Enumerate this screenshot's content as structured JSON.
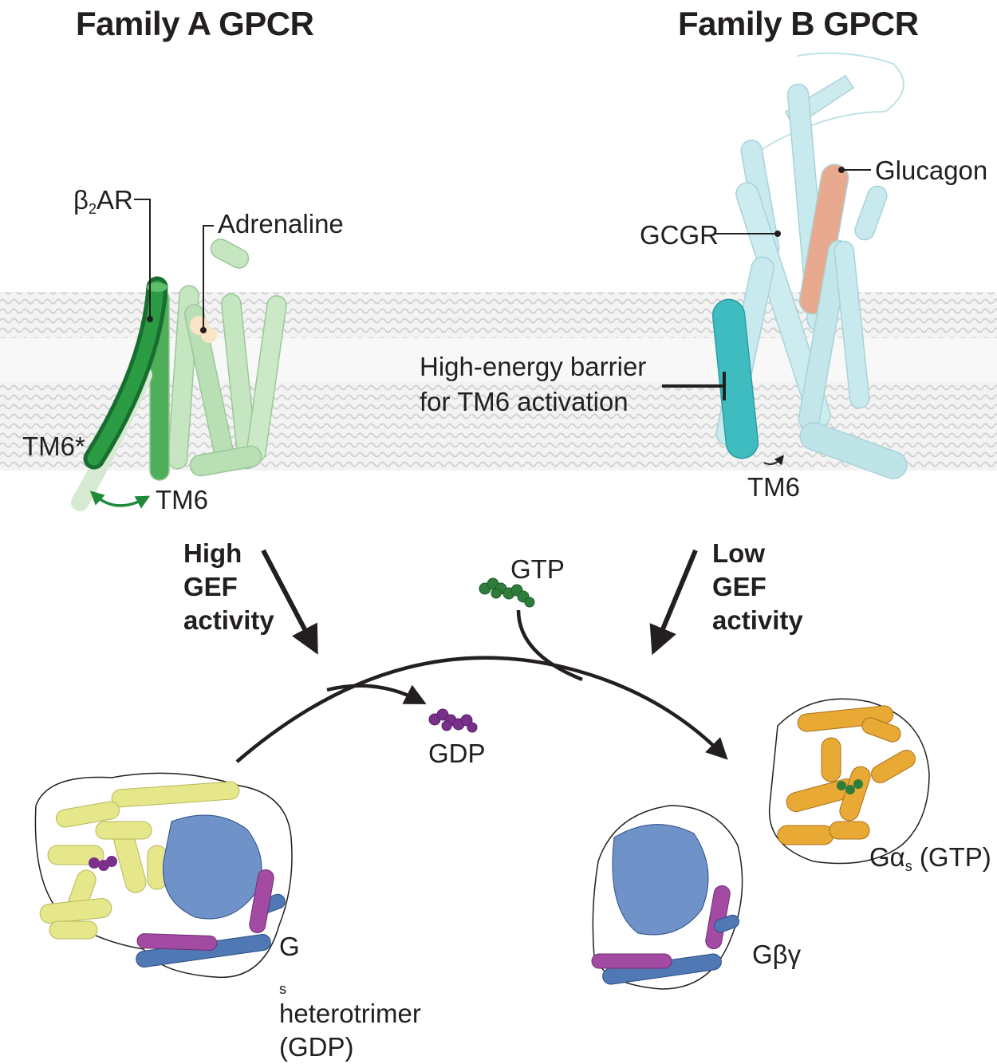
{
  "titles": {
    "family_a": "Family A GPCR",
    "family_b": "Family B GPCR"
  },
  "family_a": {
    "receptor_prefix": "β",
    "receptor_sub": "2",
    "receptor_suffix": "AR",
    "ligand": "Adrenaline",
    "tm6_active": "TM6*",
    "tm6": "TM6",
    "gef": [
      "High",
      "GEF",
      "activity"
    ]
  },
  "family_b": {
    "ligand": "Glucagon",
    "receptor": "GCGR",
    "barrier": [
      "High-energy barrier",
      "for TM6 activation"
    ],
    "tm6": "TM6",
    "gef": [
      "Low",
      "GEF",
      "activity"
    ]
  },
  "nucleotides": {
    "gtp": "GTP",
    "gdp": "GDP"
  },
  "gproteins": {
    "heterotrimer_prefix": "G",
    "heterotrimer_sub": "s",
    "heterotrimer_suffix": " heterotrimer",
    "heterotrimer_state": "(GDP)",
    "gbg": "Gβγ",
    "galpha_prefix": "Gα",
    "galpha_sub": "s",
    "galpha_suffix": " (GTP)"
  },
  "colors": {
    "helix_green_dark": "#1e8a3a",
    "helix_green_light": "#c6e6c2",
    "helix_teal": "#3fbcc0",
    "helix_cyan_light": "#c8eaee",
    "glucagon": "#e9a98f",
    "galpha_gdp": "#e6e68a",
    "gbeta": "#4f78b5",
    "ggamma": "#a34aa3",
    "galpha_gtp": "#e9a935",
    "gtp": "#2f7d3a",
    "gdp": "#7a2f8a"
  }
}
